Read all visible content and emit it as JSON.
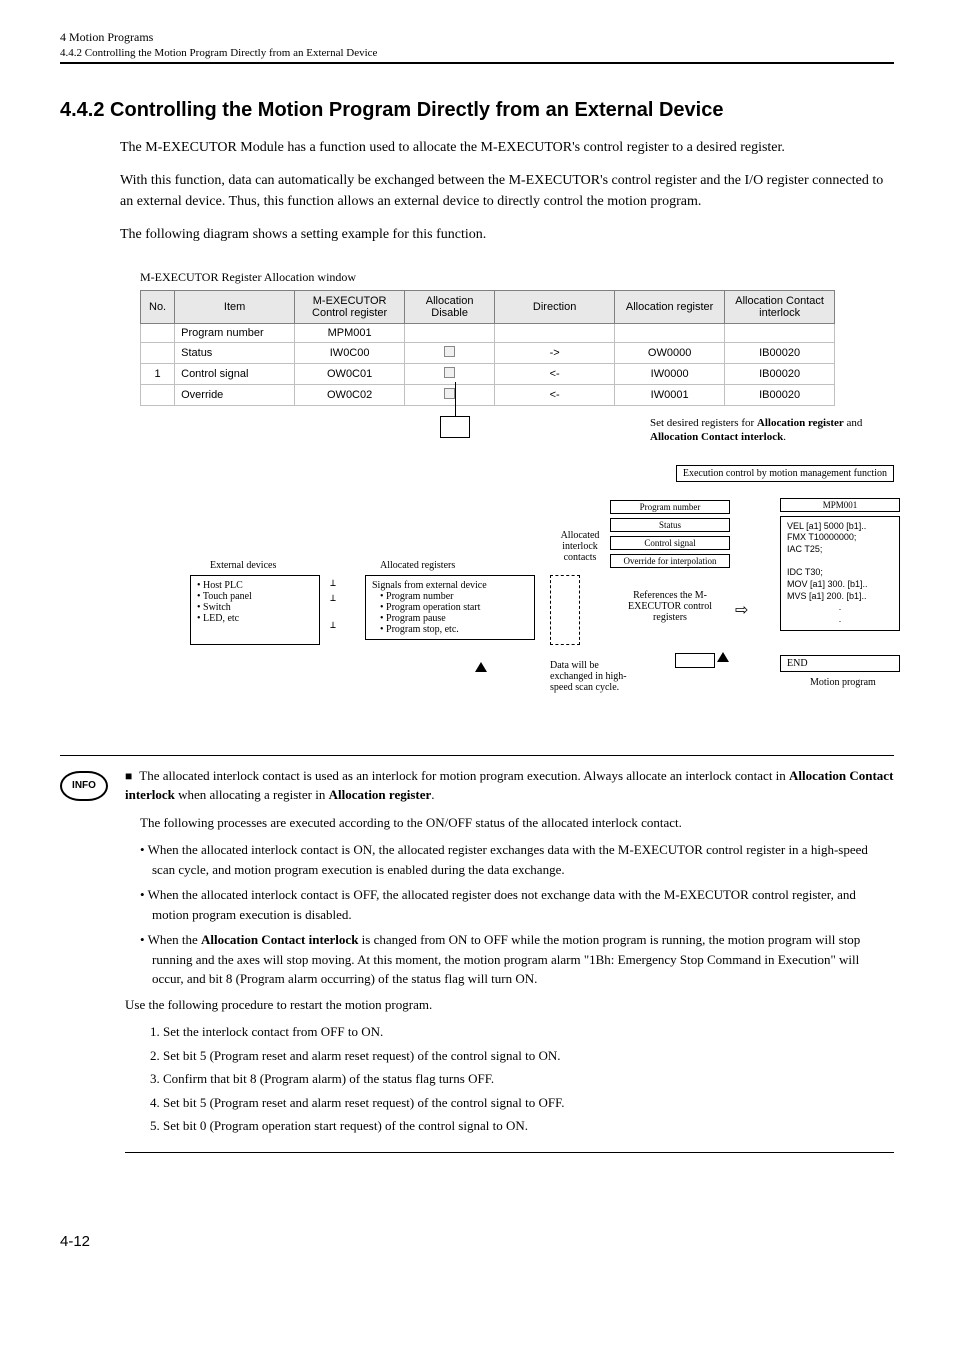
{
  "header": {
    "chapter": "4  Motion Programs",
    "subsection": "4.4.2  Controlling the Motion Program Directly from an External Device"
  },
  "section": {
    "number": "4.4.2",
    "title": "Controlling the Motion Program Directly from an External Device"
  },
  "paragraphs": {
    "p1": "The M-EXECUTOR Module has a function used to allocate the M-EXECUTOR's control register to a desired register.",
    "p2": "With this function, data can automatically be exchanged between the M-EXECUTOR's control register and the I/O register connected to an external device. Thus, this function allows an external device to directly control the motion program.",
    "p3": "The following diagram shows a setting example for this function."
  },
  "table_caption": "M-EXECUTOR Register Allocation window",
  "table": {
    "headers": [
      "No.",
      "Item",
      "M-EXECUTOR Control register",
      "Allocation Disable",
      "Direction",
      "Allocation register",
      "Allocation Contact interlock"
    ],
    "rows": [
      {
        "no": "",
        "item": "Program number",
        "reg": "MPM001",
        "disable": "",
        "dir": "",
        "alloc": "",
        "contact": ""
      },
      {
        "no": "",
        "item": "Status",
        "reg": "IW0C00",
        "disable": "check",
        "dir": "->",
        "alloc": "OW0000",
        "contact": "IB00020"
      },
      {
        "no": "1",
        "item": "Control signal",
        "reg": "OW0C01",
        "disable": "check",
        "dir": "<-",
        "alloc": "IW0000",
        "contact": "IB00020"
      },
      {
        "no": "",
        "item": "Override",
        "reg": "OW0C02",
        "disable": "check",
        "dir": "<-",
        "alloc": "IW0001",
        "contact": "IB00020"
      }
    ]
  },
  "table_note": {
    "prefix": "Set desired registers for ",
    "bold1": "Allocation register",
    "mid": " and ",
    "bold2": "Allocation Contact interlock",
    "suffix": "."
  },
  "diagram": {
    "top_right_label": "Execution control by motion management function",
    "ext_label": "External devices",
    "ext_items": [
      "• Host PLC",
      "• Touch panel",
      "• Switch",
      "• LED, etc"
    ],
    "alloc_reg_label": "Allocated registers",
    "signals_label": "Signals from external device",
    "signals_items": [
      "• Program number",
      "• Program operation start",
      "• Program pause",
      "• Program stop, etc."
    ],
    "interlock_label": "Allocated interlock contacts",
    "mid_boxes": [
      "Program number",
      "Status",
      "Control signal",
      "Override for interpolation"
    ],
    "ref_label": "References the M-EXECUTOR control registers",
    "data_exchange": "Data will be exchanged in high-speed scan cycle.",
    "mpm_title": "MPM001",
    "code_lines": [
      "VEL  [a1] 5000  [b1]..",
      "FMX T10000000;",
      "IAC   T25;",
      "",
      "IDC   T30;",
      "MOV  [a1] 300.  [b1]..",
      "MVS  [a1] 200.  [b1].."
    ],
    "end_label": "END",
    "motion_program": "Motion program"
  },
  "info": {
    "lead_part1": "The allocated interlock contact is used as an interlock for motion program execution. Always allocate an interlock contact in ",
    "lead_bold1": "Allocation Contact interlock",
    "lead_part2": " when allocating a register in ",
    "lead_bold2": "Allocation register",
    "lead_part3": ".",
    "sub": "The following processes are executed according to the ON/OFF status of the allocated interlock contact.",
    "bullets": [
      "When the allocated interlock contact is ON, the allocated register exchanges data with the M-EXECUTOR control register in a high-speed scan cycle, and motion program execution is enabled during the data exchange.",
      "When the allocated interlock contact is OFF, the allocated register does not exchange data with the M-EXECUTOR control register, and motion program execution is disabled."
    ],
    "bullet3_pre": "When the ",
    "bullet3_bold": "Allocation Contact interlock",
    "bullet3_post": " is changed from ON to OFF while the motion program is running, the motion program will stop running and the axes will stop moving. At this moment, the motion program alarm \"1Bh: Emergency Stop Command in Execution\" will occur, and bit 8 (Program alarm occurring) of the status flag will turn ON.",
    "restart_intro": "Use the following procedure to restart the motion program.",
    "steps": [
      "1. Set the interlock contact from OFF to ON.",
      "2. Set bit 5 (Program reset and alarm reset request) of the control signal to ON.",
      "3. Confirm that bit 8 (Program alarm) of the status flag turns OFF.",
      "4. Set bit 5 (Program reset and alarm reset request) of the control signal to OFF.",
      "5. Set bit 0 (Program operation start request) of the control signal to ON."
    ]
  },
  "page_number": "4-12"
}
